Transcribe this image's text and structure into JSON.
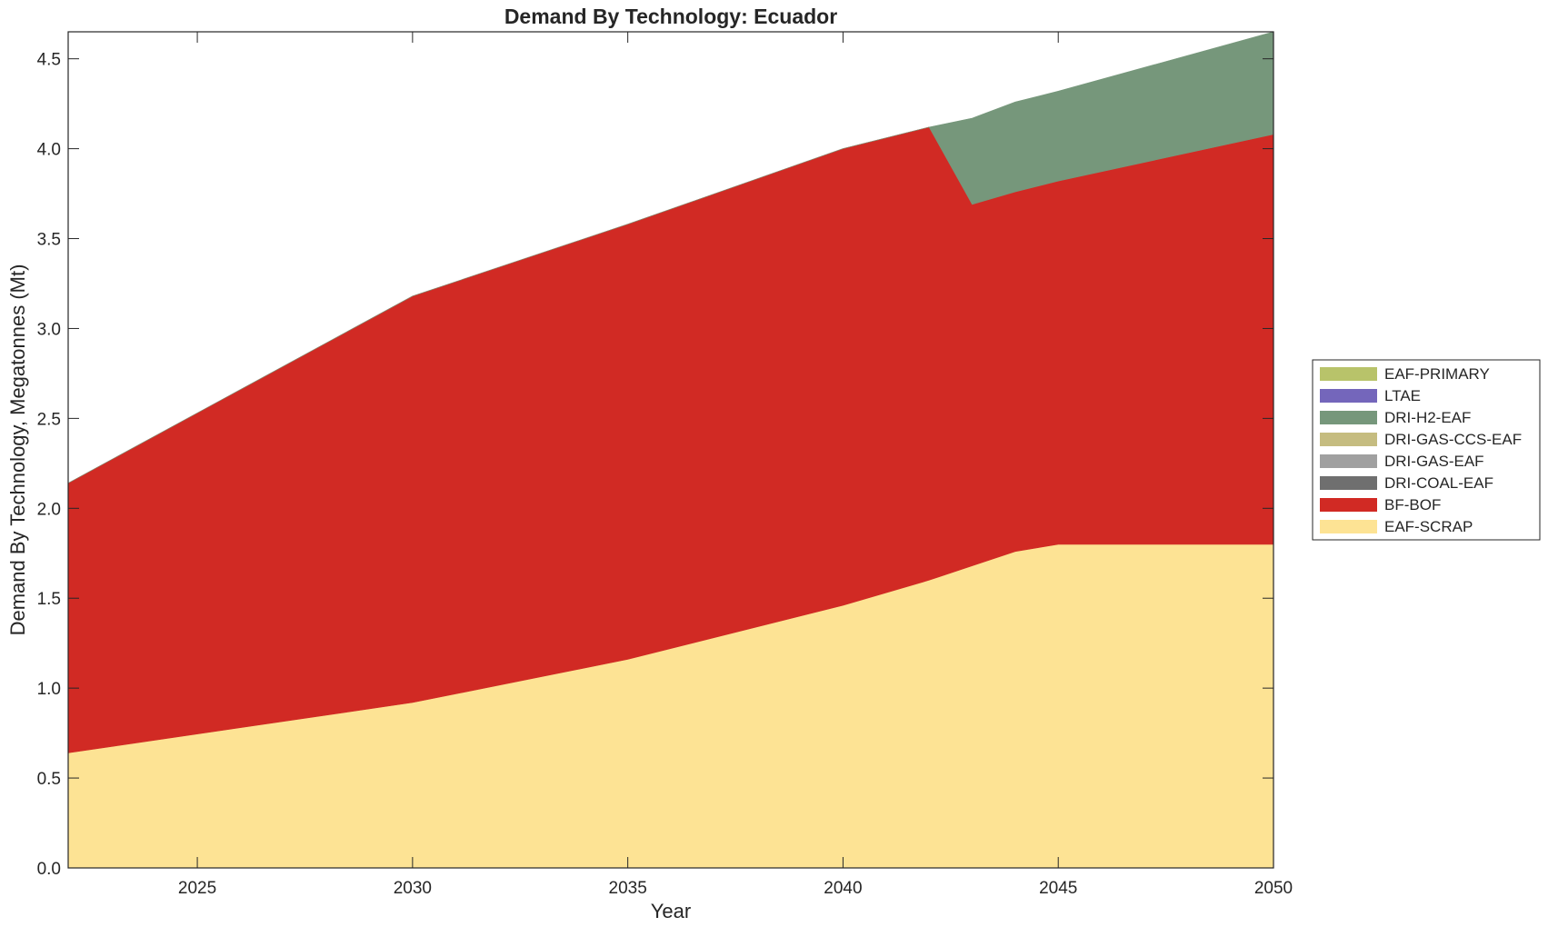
{
  "chart_data": {
    "type": "area",
    "stacked": true,
    "title": "Demand By Technology: Ecuador",
    "xlabel": "Year",
    "ylabel": "Demand By Technology, Megatonnes (Mt)",
    "xlim": [
      2022,
      2050
    ],
    "ylim": [
      0,
      4.65
    ],
    "xticks": [
      2025,
      2030,
      2035,
      2040,
      2045,
      2050
    ],
    "yticks": [
      0.0,
      0.5,
      1.0,
      1.5,
      2.0,
      2.5,
      3.0,
      3.5,
      4.0,
      4.5
    ],
    "ytick_labels": [
      "0.0",
      "0.5",
      "1.0",
      "1.5",
      "2.0",
      "2.5",
      "3.0",
      "3.5",
      "4.0",
      "4.5"
    ],
    "x": [
      2022,
      2030,
      2035,
      2040,
      2042,
      2043,
      2044,
      2045,
      2050
    ],
    "series": [
      {
        "name": "EAF-SCRAP",
        "color": "#fde394",
        "values": [
          0.64,
          0.92,
          1.16,
          1.46,
          1.6,
          1.68,
          1.76,
          1.8,
          1.8
        ]
      },
      {
        "name": "BF-BOF",
        "color": "#d12a24",
        "values": [
          1.5,
          2.26,
          2.42,
          2.54,
          2.52,
          2.01,
          2.0,
          2.02,
          2.28
        ]
      },
      {
        "name": "DRI-COAL-EAF",
        "color": "#6f6f6f",
        "values": [
          0,
          0,
          0,
          0,
          0,
          0,
          0,
          0,
          0
        ]
      },
      {
        "name": "DRI-GAS-EAF",
        "color": "#a0a0a0",
        "values": [
          0,
          0,
          0,
          0,
          0,
          0,
          0,
          0,
          0
        ]
      },
      {
        "name": "DRI-GAS-CCS-EAF",
        "color": "#c5bc80",
        "values": [
          0,
          0,
          0,
          0,
          0,
          0,
          0,
          0,
          0
        ]
      },
      {
        "name": "DRI-H2-EAF",
        "color": "#76977b",
        "values": [
          0,
          0,
          0,
          0,
          0,
          0.48,
          0.5,
          0.5,
          0.57
        ]
      },
      {
        "name": "LTAE",
        "color": "#7466bb",
        "values": [
          0,
          0,
          0,
          0,
          0,
          0,
          0,
          0,
          0
        ]
      },
      {
        "name": "EAF-PRIMARY",
        "color": "#b8c36a",
        "values": [
          0,
          0,
          0,
          0,
          0,
          0,
          0,
          0,
          0
        ]
      }
    ],
    "legend_order": [
      "EAF-PRIMARY",
      "LTAE",
      "DRI-H2-EAF",
      "DRI-GAS-CCS-EAF",
      "DRI-GAS-EAF",
      "DRI-COAL-EAF",
      "BF-BOF",
      "EAF-SCRAP"
    ],
    "legend_position": "right",
    "grid": false
  }
}
